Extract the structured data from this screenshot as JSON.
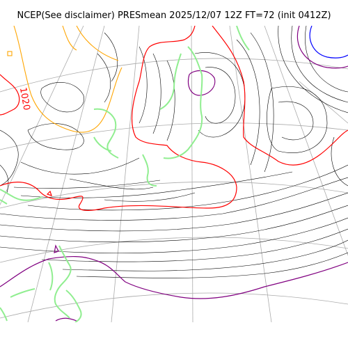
{
  "header": {
    "title": "NCEP(See disclaimer) PRESmean 2025/12/07 12Z FT=72 (init 0412Z)"
  },
  "map": {
    "contour_labels": [
      "1020"
    ],
    "colors": {
      "background": "#ffffff",
      "isobar_default": "#000000",
      "isobar_1020": "#ff0000",
      "isobar_high": "#ffa500",
      "isobar_low_purple": "#800080",
      "isobar_low_blue": "#0000ff",
      "coastline": "#90ee90",
      "graticule": "#aaaaaa"
    }
  }
}
